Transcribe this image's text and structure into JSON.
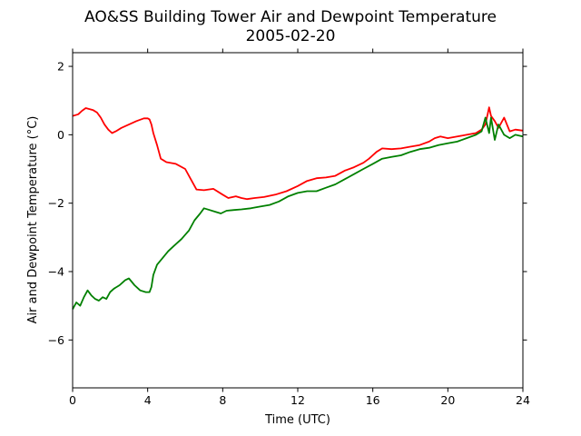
{
  "chart_data": {
    "type": "line",
    "title": "AO&SS Building Tower Air and Dewpoint Temperature",
    "subtitle": "2005-02-20",
    "xlabel": "Time (UTC)",
    "ylabel": "Air and Dewpoint Temperature (°C)",
    "xlim": [
      0,
      24
    ],
    "ylim": [
      -7.4,
      2.4
    ],
    "xticks": [
      0,
      4,
      8,
      12,
      16,
      20,
      24
    ],
    "yticks": [
      -6,
      -4,
      -2,
      0,
      2
    ],
    "grid": false,
    "legend": "none",
    "series": [
      {
        "color": "#ff0000",
        "x": [
          0,
          0.3,
          0.5,
          0.7,
          0.9,
          1.1,
          1.3,
          1.5,
          1.7,
          1.9,
          2.1,
          2.3,
          2.6,
          3.0,
          3.4,
          3.8,
          4.0,
          4.1,
          4.2,
          4.3,
          4.5,
          4.7,
          5.0,
          5.5,
          6.0,
          6.3,
          6.6,
          7.0,
          7.5,
          8.0,
          8.3,
          8.7,
          9.0,
          9.3,
          9.7,
          10.2,
          10.8,
          11.4,
          12.0,
          12.5,
          13.0,
          13.5,
          14.0,
          14.5,
          15.0,
          15.5,
          15.8,
          16.2,
          16.5,
          17.0,
          17.5,
          18.0,
          18.5,
          19.0,
          19.3,
          19.6,
          20.0,
          20.5,
          21.0,
          21.5,
          21.8,
          22.0,
          22.2,
          22.3,
          22.5,
          22.7,
          23.0,
          23.3,
          23.6,
          24.0
        ],
        "y": [
          0.55,
          0.6,
          0.7,
          0.78,
          0.75,
          0.72,
          0.65,
          0.5,
          0.3,
          0.15,
          0.05,
          0.1,
          0.2,
          0.3,
          0.4,
          0.48,
          0.48,
          0.45,
          0.3,
          0.05,
          -0.3,
          -0.7,
          -0.8,
          -0.85,
          -1.0,
          -1.3,
          -1.6,
          -1.62,
          -1.58,
          -1.75,
          -1.85,
          -1.8,
          -1.85,
          -1.88,
          -1.85,
          -1.82,
          -1.75,
          -1.65,
          -1.5,
          -1.35,
          -1.27,
          -1.25,
          -1.2,
          -1.05,
          -0.95,
          -0.82,
          -0.7,
          -0.5,
          -0.4,
          -0.42,
          -0.4,
          -0.35,
          -0.3,
          -0.2,
          -0.1,
          -0.05,
          -0.1,
          -0.05,
          0.0,
          0.05,
          0.15,
          0.3,
          0.8,
          0.55,
          0.4,
          0.2,
          0.5,
          0.1,
          0.15,
          0.12
        ]
      },
      {
        "color": "#008000",
        "x": [
          0,
          0.2,
          0.4,
          0.6,
          0.8,
          1.0,
          1.2,
          1.4,
          1.6,
          1.8,
          2.0,
          2.2,
          2.5,
          2.8,
          3.0,
          3.3,
          3.6,
          3.9,
          4.1,
          4.2,
          4.3,
          4.5,
          4.8,
          5.1,
          5.4,
          5.8,
          6.2,
          6.5,
          6.8,
          7.0,
          7.3,
          7.6,
          7.9,
          8.2,
          8.6,
          9.0,
          9.5,
          10.0,
          10.5,
          11.0,
          11.5,
          12.0,
          12.5,
          13.0,
          13.5,
          14.0,
          14.5,
          15.0,
          15.5,
          16.0,
          16.5,
          17.0,
          17.5,
          18.0,
          18.5,
          19.0,
          19.5,
          20.0,
          20.5,
          21.0,
          21.5,
          21.8,
          22.0,
          22.2,
          22.3,
          22.5,
          22.7,
          23.0,
          23.3,
          23.6,
          24.0
        ],
        "y": [
          -5.1,
          -4.9,
          -5.0,
          -4.75,
          -4.55,
          -4.7,
          -4.8,
          -4.85,
          -4.75,
          -4.8,
          -4.6,
          -4.5,
          -4.4,
          -4.25,
          -4.2,
          -4.4,
          -4.55,
          -4.6,
          -4.6,
          -4.45,
          -4.1,
          -3.8,
          -3.6,
          -3.4,
          -3.25,
          -3.05,
          -2.8,
          -2.5,
          -2.3,
          -2.15,
          -2.2,
          -2.25,
          -2.3,
          -2.22,
          -2.2,
          -2.18,
          -2.15,
          -2.1,
          -2.05,
          -1.95,
          -1.8,
          -1.7,
          -1.65,
          -1.65,
          -1.55,
          -1.45,
          -1.3,
          -1.15,
          -1.0,
          -0.85,
          -0.7,
          -0.65,
          -0.6,
          -0.5,
          -0.42,
          -0.38,
          -0.3,
          -0.25,
          -0.2,
          -0.1,
          0.0,
          0.1,
          0.5,
          0.05,
          0.5,
          -0.15,
          0.3,
          0.0,
          -0.1,
          0.0,
          -0.05
        ]
      }
    ]
  }
}
